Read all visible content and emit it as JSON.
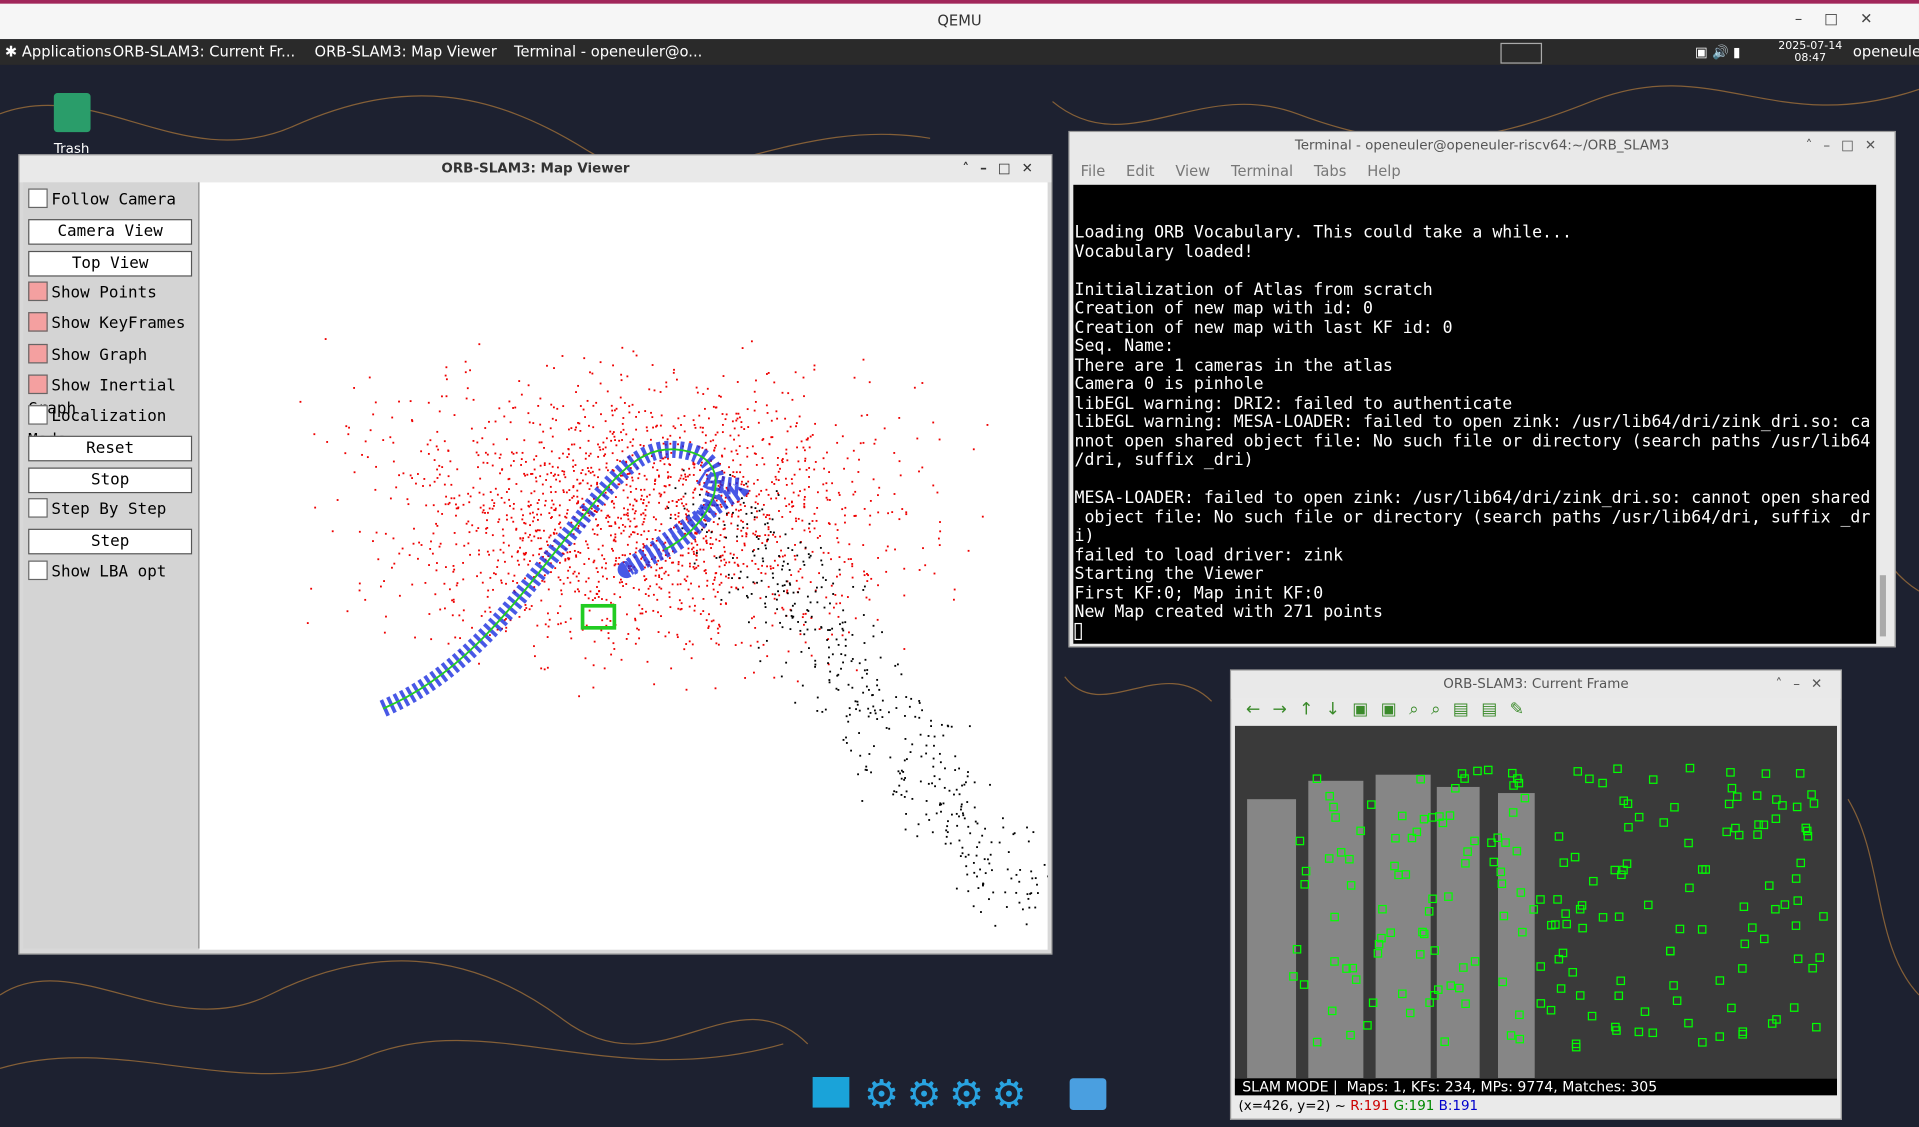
{
  "qemu_title": "QEMU",
  "taskbar": {
    "applications": "Applications",
    "tasks": [
      "ORB-SLAM3: Current Fr...",
      "ORB-SLAM3: Map Viewer",
      "Terminal - openeuler@o..."
    ],
    "date": "2025-07-14",
    "time": "08:47",
    "user": "openeuler"
  },
  "desktop": {
    "trash_label": "Trash"
  },
  "map_viewer": {
    "title": "ORB-SLAM3: Map Viewer",
    "controls": [
      {
        "kind": "checkbox",
        "label": "Follow Camera",
        "checked": false
      },
      {
        "kind": "button",
        "label": "Camera View"
      },
      {
        "kind": "button",
        "label": "Top View"
      },
      {
        "kind": "checkbox",
        "label": "Show Points",
        "checked": true
      },
      {
        "kind": "checkbox",
        "label": "Show KeyFrames",
        "checked": true
      },
      {
        "kind": "checkbox",
        "label": "Show Graph",
        "checked": true
      },
      {
        "kind": "checkbox",
        "label": "Show Inertial Graph",
        "checked": true
      },
      {
        "kind": "checkbox",
        "label": "Localization Mode",
        "checked": false
      },
      {
        "kind": "button",
        "label": "Reset"
      },
      {
        "kind": "button",
        "label": "Stop"
      },
      {
        "kind": "checkbox",
        "label": "Step By Step",
        "checked": false
      },
      {
        "kind": "button",
        "label": "Step"
      },
      {
        "kind": "checkbox",
        "label": "Show LBA opt",
        "checked": false
      }
    ]
  },
  "terminal": {
    "title": "Terminal - openeuler@openeuler-riscv64:~/ORB_SLAM3",
    "menu": [
      "File",
      "Edit",
      "View",
      "Terminal",
      "Tabs",
      "Help"
    ],
    "paragraphs": [
      [
        "Loading ORB Vocabulary. This could take a while...",
        "Vocabulary loaded!"
      ],
      [
        "Initialization of Atlas from scratch",
        "Creation of new map with id: 0",
        "Creation of new map with last KF id: 0",
        "Seq. Name:",
        "There are 1 cameras in the atlas",
        "Camera 0 is pinhole",
        "libEGL warning: DRI2: failed to authenticate",
        "libEGL warning: MESA-LOADER: failed to open zink: /usr/lib64/dri/zink_dri.so: ca",
        "nnot open shared object file: No such file or directory (search paths /usr/lib64",
        "/dri, suffix _dri)"
      ],
      [
        "MESA-LOADER: failed to open zink: /usr/lib64/dri/zink_dri.so: cannot open shared",
        " object file: No such file or directory (search paths /usr/lib64/dri, suffix _dr",
        "i)",
        "failed to load driver: zink",
        "Starting the Viewer",
        "First KF:0; Map init KF:0",
        "New Map created with 271 points"
      ]
    ]
  },
  "current_frame": {
    "title": "ORB-SLAM3: Current Frame",
    "status": "SLAM MODE |  Maps: 1, KFs: 234, MPs: 9774, Matches: 305",
    "coords": "(x=426, y=2) ~",
    "r": "R:191",
    "g": "G:191",
    "b": "B:191"
  }
}
